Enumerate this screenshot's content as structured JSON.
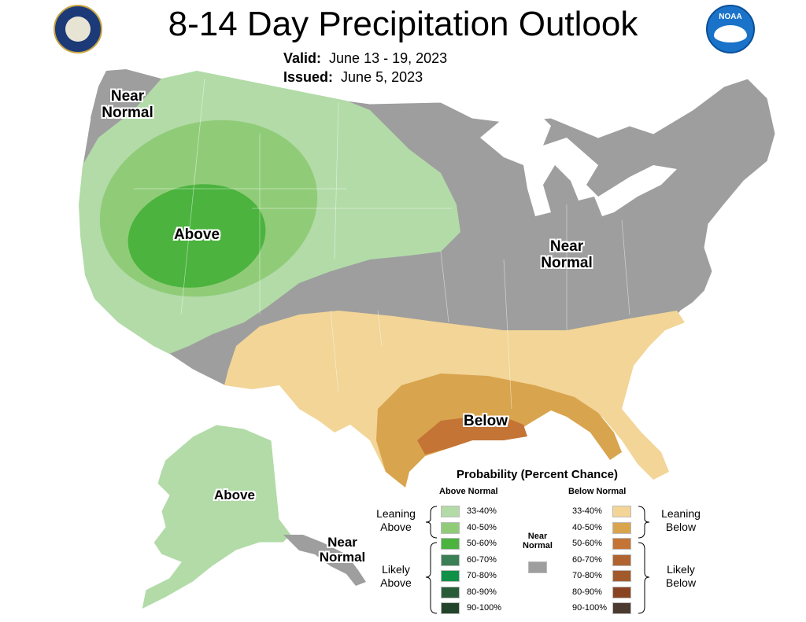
{
  "header": {
    "title": "8-14 Day Precipitation Outlook",
    "valid_label": "Valid:",
    "valid_value": "June 13 - 19, 2023",
    "issued_label": "Issued:",
    "issued_value": "June 5, 2023"
  },
  "logos": {
    "left": "doc-seal",
    "right": "noaa-logo",
    "right_text": "NOAA"
  },
  "map_labels": {
    "nw": "Near Normal",
    "west": "Above",
    "east": "Near Normal",
    "south": "Below",
    "alaska": "Above",
    "alaska_se": "Near Normal"
  },
  "legend": {
    "title": "Probability (Percent Chance)",
    "above_heading": "Above Normal",
    "below_heading": "Below Normal",
    "near_heading": "Near Normal",
    "leaning_above": "Leaning Above",
    "likely_above": "Likely Above",
    "leaning_below": "Leaning Below",
    "likely_below": "Likely Below",
    "above": [
      {
        "label": "33-40%",
        "color": "#b2dba8"
      },
      {
        "label": "40-50%",
        "color": "#90cc78"
      },
      {
        "label": "50-60%",
        "color": "#4bb33e"
      },
      {
        "label": "60-70%",
        "color": "#3a7f55"
      },
      {
        "label": "70-80%",
        "color": "#0f9147"
      },
      {
        "label": "80-90%",
        "color": "#285c39"
      },
      {
        "label": "90-100%",
        "color": "#22442a"
      }
    ],
    "below": [
      {
        "label": "33-40%",
        "color": "#f2d597"
      },
      {
        "label": "40-50%",
        "color": "#d9a44e"
      },
      {
        "label": "50-60%",
        "color": "#c47435"
      },
      {
        "label": "60-70%",
        "color": "#b06530"
      },
      {
        "label": "70-80%",
        "color": "#a35a2a"
      },
      {
        "label": "80-90%",
        "color": "#8a4320"
      },
      {
        "label": "90-100%",
        "color": "#4b3a30"
      }
    ],
    "near_color": "#9e9e9e"
  }
}
